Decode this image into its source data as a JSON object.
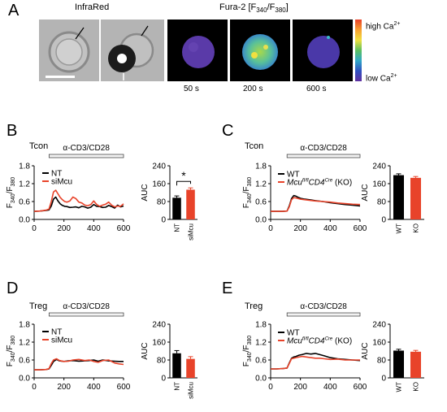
{
  "panel_a": {
    "letter": "A",
    "infrared_label": "InfraRed",
    "fura_label": "Fura-2 [F",
    "fura_sub1": "340",
    "fura_slash": "/F",
    "fura_sub2": "380",
    "fura_close": "]",
    "timepoints": [
      "50 s",
      "200 s",
      "600 s"
    ],
    "scale_high_prefix": "high Ca",
    "scale_low_prefix": "low Ca",
    "scale_sup": "2+"
  },
  "panels": [
    {
      "letter": "B",
      "title": "Tcon",
      "stim_label": "α-CD3/CD28",
      "legend": [
        "NT",
        "siMcu"
      ],
      "legend_sup": [
        "",
        ""
      ],
      "legend_suffix": [
        "",
        ""
      ],
      "legend_italic": [
        false,
        false
      ],
      "y_ticks": [
        "0.0",
        "0.6",
        "1.2",
        "1.8"
      ],
      "x_ticks": [
        "0",
        "200",
        "400",
        "600"
      ],
      "bar_ticks": [
        "0",
        "80",
        "160",
        "240"
      ],
      "bar_categories": [
        "NT",
        "siMcu"
      ],
      "significance": "*"
    },
    {
      "letter": "C",
      "title": "Tcon",
      "stim_label": "α-CD3/CD28",
      "legend": [
        "WT",
        "Mcu"
      ],
      "legend_sup": [
        "",
        "fl/fl"
      ],
      "legend_mid": [
        "",
        "CD4"
      ],
      "legend_sup2": [
        "",
        "Cre"
      ],
      "legend_suffix": [
        "",
        " (KO)"
      ],
      "y_ticks": [
        "0.0",
        "0.6",
        "1.2",
        "1.8"
      ],
      "x_ticks": [
        "0",
        "200",
        "400",
        "600"
      ],
      "bar_ticks": [
        "0",
        "80",
        "160",
        "240"
      ],
      "bar_categories": [
        "WT",
        "KO"
      ]
    },
    {
      "letter": "D",
      "title": "Treg",
      "stim_label": "α-CD3/CD28",
      "legend": [
        "NT",
        "siMcu"
      ],
      "y_ticks": [
        "0.0",
        "0.6",
        "1.2",
        "1.8"
      ],
      "x_ticks": [
        "0",
        "200",
        "400",
        "600"
      ],
      "bar_ticks": [
        "0",
        "80",
        "160",
        "240"
      ],
      "bar_categories": [
        "NT",
        "siMcu"
      ]
    },
    {
      "letter": "E",
      "title": "Treg",
      "stim_label": "α-CD3/CD28",
      "legend": [
        "WT",
        "Mcu"
      ],
      "legend_sup": [
        "",
        "fl/fl"
      ],
      "legend_mid": [
        "",
        "CD4"
      ],
      "legend_sup2": [
        "",
        "Cre"
      ],
      "legend_suffix": [
        "",
        " (KO)"
      ],
      "y_ticks": [
        "0.0",
        "0.6",
        "1.2",
        "1.8"
      ],
      "x_ticks": [
        "0",
        "200",
        "400",
        "600"
      ],
      "bar_ticks": [
        "0",
        "80",
        "160",
        "240"
      ],
      "bar_categories": [
        "WT",
        "KO"
      ]
    }
  ],
  "y_label_main": "F",
  "y_label_sub1": "340",
  "y_label_slash": "/F",
  "y_label_sub2": "380",
  "bar_ylabel": "AUC",
  "colors": {
    "series_black": "#000000",
    "series_red": "#e8432a",
    "stim_bar": "#f2f2f2"
  },
  "chart_data": [
    {
      "panel": "B",
      "type": "line",
      "xlim": [
        0,
        600
      ],
      "ylim": [
        0,
        1.8
      ],
      "stim_range": [
        100,
        600
      ],
      "series": [
        {
          "name": "NT",
          "color": "#000000",
          "x": [
            0,
            40,
            80,
            100,
            115,
            130,
            145,
            160,
            175,
            190,
            205,
            220,
            240,
            260,
            280,
            300,
            320,
            340,
            360,
            380,
            400,
            420,
            440,
            460,
            480,
            500,
            520,
            540,
            560,
            580,
            600
          ],
          "y": [
            0.27,
            0.28,
            0.3,
            0.32,
            0.45,
            0.68,
            0.75,
            0.62,
            0.52,
            0.47,
            0.44,
            0.43,
            0.4,
            0.41,
            0.42,
            0.39,
            0.44,
            0.42,
            0.38,
            0.41,
            0.5,
            0.44,
            0.43,
            0.4,
            0.41,
            0.47,
            0.43,
            0.38,
            0.48,
            0.42,
            0.45
          ]
        },
        {
          "name": "siMcu",
          "color": "#e8432a",
          "x": [
            0,
            40,
            80,
            100,
            115,
            130,
            145,
            160,
            175,
            190,
            205,
            220,
            240,
            260,
            280,
            300,
            320,
            340,
            360,
            380,
            400,
            420,
            440,
            460,
            480,
            500,
            520,
            540,
            560,
            580,
            600
          ],
          "y": [
            0.27,
            0.28,
            0.31,
            0.35,
            0.6,
            0.92,
            0.98,
            0.86,
            0.74,
            0.66,
            0.6,
            0.58,
            0.62,
            0.75,
            0.7,
            0.58,
            0.55,
            0.48,
            0.46,
            0.5,
            0.62,
            0.5,
            0.44,
            0.48,
            0.51,
            0.58,
            0.48,
            0.42,
            0.45,
            0.44,
            0.52
          ]
        }
      ]
    },
    {
      "panel": "B",
      "type": "bar",
      "ylabel": "AUC",
      "ylim": [
        0,
        240
      ],
      "categories": [
        "NT",
        "siMcu"
      ],
      "values": [
        97,
        133
      ],
      "errors": [
        8,
        8
      ],
      "colors": [
        "#000000",
        "#e8432a"
      ]
    },
    {
      "panel": "C",
      "type": "line",
      "xlim": [
        0,
        600
      ],
      "ylim": [
        0,
        1.8
      ],
      "stim_range": [
        110,
        600
      ],
      "series": [
        {
          "name": "WT",
          "color": "#000000",
          "x": [
            0,
            40,
            80,
            110,
            125,
            140,
            155,
            170,
            185,
            200,
            230,
            260,
            300,
            350,
            400,
            450,
            500,
            550,
            600
          ],
          "y": [
            0.27,
            0.27,
            0.27,
            0.28,
            0.45,
            0.7,
            0.8,
            0.78,
            0.74,
            0.71,
            0.68,
            0.66,
            0.63,
            0.6,
            0.56,
            0.53,
            0.5,
            0.48,
            0.45
          ]
        },
        {
          "name": "Mcufl/flCD4Cre (KO)",
          "color": "#e8432a",
          "x": [
            0,
            40,
            80,
            110,
            125,
            140,
            155,
            170,
            185,
            200,
            230,
            260,
            300,
            350,
            400,
            450,
            500,
            550,
            600
          ],
          "y": [
            0.27,
            0.27,
            0.27,
            0.28,
            0.42,
            0.66,
            0.73,
            0.72,
            0.7,
            0.68,
            0.66,
            0.64,
            0.62,
            0.6,
            0.58,
            0.55,
            0.53,
            0.51,
            0.5
          ]
        }
      ]
    },
    {
      "panel": "C",
      "type": "bar",
      "ylabel": "AUC",
      "ylim": [
        0,
        240
      ],
      "categories": [
        "WT",
        "KO"
      ],
      "values": [
        198,
        186
      ],
      "errors": [
        6,
        6
      ],
      "colors": [
        "#000000",
        "#e8432a"
      ]
    },
    {
      "panel": "D",
      "type": "line",
      "xlim": [
        0,
        600
      ],
      "ylim": [
        0,
        1.8
      ],
      "stim_range": [
        100,
        600
      ],
      "series": [
        {
          "name": "NT",
          "color": "#000000",
          "x": [
            0,
            40,
            80,
            100,
            115,
            130,
            150,
            170,
            200,
            230,
            260,
            300,
            340,
            370,
            400,
            430,
            460,
            500,
            540,
            570,
            600
          ],
          "y": [
            0.27,
            0.27,
            0.28,
            0.3,
            0.42,
            0.55,
            0.62,
            0.57,
            0.55,
            0.57,
            0.58,
            0.56,
            0.57,
            0.58,
            0.6,
            0.56,
            0.6,
            0.57,
            0.56,
            0.55,
            0.55
          ]
        },
        {
          "name": "siMcu",
          "color": "#e8432a",
          "x": [
            0,
            40,
            80,
            100,
            115,
            130,
            150,
            170,
            200,
            230,
            260,
            300,
            340,
            370,
            400,
            430,
            460,
            500,
            540,
            570,
            600
          ],
          "y": [
            0.27,
            0.27,
            0.28,
            0.31,
            0.48,
            0.6,
            0.64,
            0.58,
            0.55,
            0.56,
            0.6,
            0.62,
            0.58,
            0.6,
            0.55,
            0.52,
            0.58,
            0.6,
            0.5,
            0.47,
            0.45
          ]
        }
      ]
    },
    {
      "panel": "D",
      "type": "bar",
      "ylabel": "AUC",
      "ylim": [
        0,
        240
      ],
      "categories": [
        "NT",
        "siMcu"
      ],
      "values": [
        110,
        85
      ],
      "errors": [
        12,
        10
      ],
      "colors": [
        "#000000",
        "#e8432a"
      ]
    },
    {
      "panel": "E",
      "type": "line",
      "xlim": [
        0,
        600
      ],
      "ylim": [
        0,
        1.8
      ],
      "stim_range": [
        110,
        600
      ],
      "series": [
        {
          "name": "WT",
          "color": "#000000",
          "x": [
            0,
            40,
            80,
            110,
            125,
            140,
            155,
            170,
            190,
            210,
            240,
            270,
            300,
            330,
            360,
            400,
            450,
            500,
            550,
            600
          ],
          "y": [
            0.3,
            0.3,
            0.31,
            0.33,
            0.5,
            0.66,
            0.7,
            0.72,
            0.76,
            0.78,
            0.82,
            0.8,
            0.82,
            0.78,
            0.74,
            0.68,
            0.64,
            0.62,
            0.6,
            0.58
          ]
        },
        {
          "name": "Mcufl/flCD4Cre (KO)",
          "color": "#e8432a",
          "x": [
            0,
            40,
            80,
            110,
            125,
            140,
            155,
            170,
            190,
            210,
            240,
            270,
            300,
            330,
            360,
            400,
            450,
            500,
            550,
            600
          ],
          "y": [
            0.3,
            0.3,
            0.31,
            0.33,
            0.48,
            0.64,
            0.66,
            0.68,
            0.7,
            0.72,
            0.7,
            0.68,
            0.66,
            0.66,
            0.64,
            0.62,
            0.63,
            0.6,
            0.6,
            0.6
          ]
        }
      ]
    },
    {
      "panel": "E",
      "type": "bar",
      "ylabel": "AUC",
      "ylim": [
        0,
        240
      ],
      "categories": [
        "WT",
        "KO"
      ],
      "values": [
        122,
        117
      ],
      "errors": [
        6,
        6
      ],
      "colors": [
        "#000000",
        "#e8432a"
      ]
    }
  ]
}
